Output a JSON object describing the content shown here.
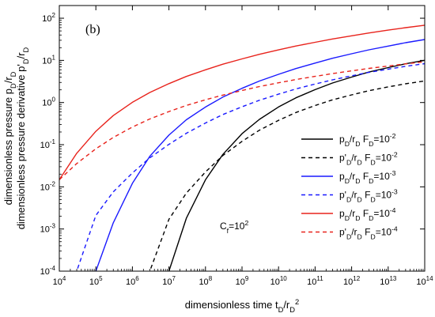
{
  "chart_data": {
    "type": "line",
    "panel_label": "(b)",
    "xlabel": "dimensionless time t_D/r_D^2",
    "ylabel_line1": "dimensionless pressure p_D/r_D",
    "ylabel_line2": "dimensionless pressure derivative p'_D/r_D",
    "xscale": "log",
    "yscale": "log",
    "xlim": [
      10000,
      100000000000000
    ],
    "ylim": [
      0.0001,
      200
    ],
    "x_tick_exponents": [
      4,
      5,
      6,
      7,
      8,
      9,
      10,
      11,
      12,
      13,
      14
    ],
    "y_tick_exponents": [
      -4,
      -3,
      -2,
      -1,
      0,
      1,
      2
    ],
    "annotation": "C_f=10^2",
    "x": [
      10000.0,
      30000.0,
      100000.0,
      300000.0,
      1000000.0,
      3000000.0,
      10000000.0,
      30000000.0,
      100000000.0,
      300000000.0,
      1000000000.0,
      3000000000.0,
      10000000000.0,
      30000000000.0,
      100000000000.0,
      300000000000.0,
      1000000000000.0,
      3000000000000.0,
      10000000000000.0,
      30000000000000.0,
      100000000000000.0
    ],
    "series": [
      {
        "name": "p_D/r_D F_D=10^-2",
        "color": "#000000",
        "dash": false,
        "values": [
          null,
          null,
          null,
          null,
          null,
          null,
          0.0001,
          0.0018,
          0.0147,
          0.0588,
          0.1825,
          0.3984,
          0.7846,
          1.296,
          2.019,
          2.901,
          4.023,
          5.285,
          6.742,
          8.297,
          10.02
        ]
      },
      {
        "name": "p'_D/r_D F_D=10^-2",
        "color": "#000000",
        "dash": true,
        "values": [
          null,
          null,
          null,
          null,
          null,
          0.0001,
          0.0017,
          0.0071,
          0.0226,
          0.0555,
          0.1201,
          0.2202,
          0.3785,
          0.5814,
          0.8487,
          1.157,
          1.523,
          1.915,
          2.348,
          2.785,
          3.247
        ]
      },
      {
        "name": "p_D/r_D F_D=10^-3",
        "color": "#1a1aff",
        "dash": false,
        "values": [
          null,
          null,
          0.0001,
          0.0014,
          0.0121,
          0.0531,
          0.1686,
          0.3893,
          0.7826,
          1.349,
          2.173,
          3.238,
          4.678,
          6.409,
          8.638,
          11.21,
          14.34,
          17.8,
          21.86,
          26.25,
          31.18
        ]
      },
      {
        "name": "p'_D/r_D F_D=10^-3",
        "color": "#1a1aff",
        "dash": true,
        "values": [
          null,
          0.0001,
          0.0021,
          0.0076,
          0.0213,
          0.0486,
          0.1018,
          0.1866,
          0.3275,
          0.5187,
          0.7916,
          1.132,
          1.579,
          2.101,
          2.742,
          3.457,
          4.297,
          5.195,
          6.196,
          7.234,
          8.373
        ]
      },
      {
        "name": "p_D/r_D F_D=10^-4",
        "color": "#e8231c",
        "dash": false,
        "values": [
          0.0148,
          0.0624,
          0.2076,
          0.4913,
          1.015,
          1.731,
          2.811,
          4.157,
          5.987,
          8.128,
          10.86,
          13.95,
          17.75,
          21.9,
          26.87,
          32.13,
          38.3,
          44.74,
          52.11,
          59.69,
          68.24
        ]
      },
      {
        "name": "p'_D/r_D F_D=10^-4",
        "color": "#e8231c",
        "dash": true,
        "values": [
          0.0148,
          0.0357,
          0.0799,
          0.1484,
          0.2624,
          0.4082,
          0.6122,
          0.8508,
          1.161,
          1.5,
          1.93,
          2.39,
          2.94,
          3.51,
          4.18,
          4.86,
          5.65,
          6.45,
          7.36,
          8.27,
          9.28
        ]
      }
    ],
    "legend_position": "right",
    "grid": false
  }
}
